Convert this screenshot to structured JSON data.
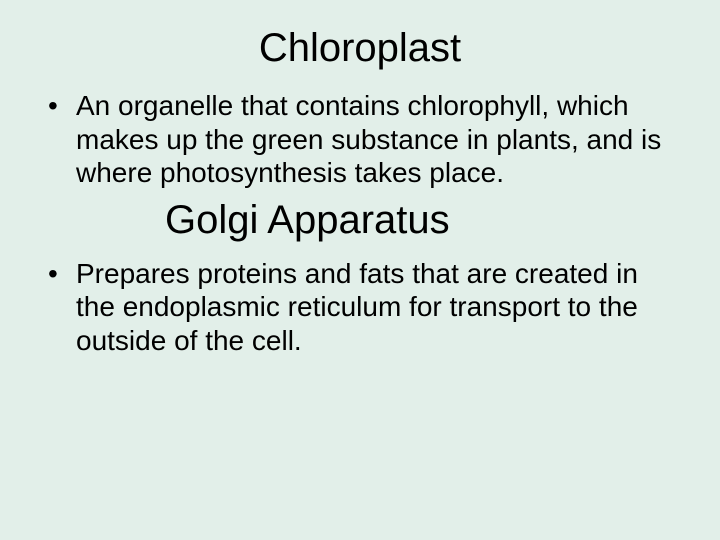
{
  "background_color": "#e2efe9",
  "text_color": "#000000",
  "font_family": "Arial",
  "sections": [
    {
      "title": "Chloroplast",
      "title_fontsize": 40,
      "bullet_fontsize": 28,
      "bullets": [
        "An organelle that contains chlorophyll, which makes up the green substance in plants, and is where photosynthesis takes place."
      ]
    },
    {
      "title": "Golgi Apparatus",
      "title_fontsize": 40,
      "bullet_fontsize": 28,
      "bullets": [
        "Prepares proteins and fats that are created in the endoplasmic reticulum for transport to the outside of the cell."
      ]
    }
  ]
}
